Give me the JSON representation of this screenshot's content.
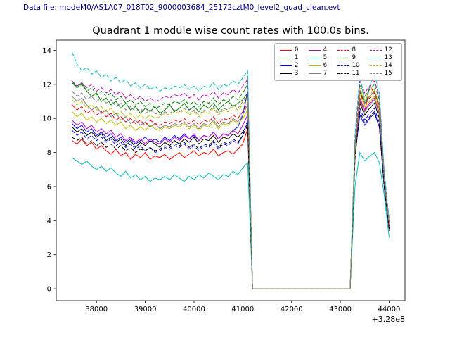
{
  "header": {
    "data_file_label": "Data file: modeM0/AS1A07_018T02_9000003684_25172cztM0_level2_quad_clean.evt",
    "color": "#00008b"
  },
  "chart_data": {
    "type": "line",
    "title": "Quadrant 1 module wise count rates with 100.0s bins.",
    "xlabel": "",
    "ylabel": "",
    "x_offset_label": "+3.28e8",
    "grid": false,
    "legend_position": "upper right",
    "legend_columns": 4,
    "xlim": [
      37175,
      44325
    ],
    "ylim": [
      -0.7,
      14.6
    ],
    "xticks": [
      38000,
      39000,
      40000,
      41000,
      42000,
      43000,
      44000
    ],
    "yticks": [
      0,
      2,
      4,
      6,
      8,
      10,
      12,
      14
    ],
    "x": [
      37500,
      37600,
      37700,
      37800,
      37900,
      38000,
      38100,
      38200,
      38300,
      38400,
      38500,
      38600,
      38700,
      38800,
      38900,
      39000,
      39100,
      39200,
      39300,
      39400,
      39500,
      39600,
      39700,
      39800,
      39900,
      40000,
      40100,
      40200,
      40300,
      40400,
      40500,
      40600,
      40700,
      40800,
      40900,
      41000,
      41100,
      41200,
      41300,
      41400,
      41500,
      41600,
      41700,
      41800,
      41900,
      42000,
      42100,
      42200,
      42300,
      42400,
      42500,
      42600,
      42700,
      42800,
      42900,
      43000,
      43100,
      43200,
      43300,
      43400,
      43500,
      43600,
      43700,
      43800,
      43900,
      44000
    ],
    "series": [
      {
        "name": "0",
        "color": "#ff0000",
        "dash": "solid",
        "values": [
          8.7,
          8.5,
          8.8,
          8.4,
          8.6,
          8.2,
          8.4,
          8.1,
          7.9,
          8.2,
          7.8,
          8.0,
          7.6,
          7.9,
          7.7,
          8.0,
          7.6,
          7.8,
          7.7,
          7.9,
          7.6,
          7.8,
          8.0,
          7.7,
          7.9,
          8.1,
          7.8,
          8.0,
          7.9,
          8.2,
          7.8,
          8.0,
          8.1,
          7.9,
          8.2,
          8.5,
          9.4,
          0,
          0,
          0,
          0,
          0,
          0,
          0,
          0,
          0,
          0,
          0,
          0,
          0,
          0,
          0,
          0,
          0,
          0,
          0,
          0,
          0,
          8.5,
          11.0,
          10.4,
          11.9,
          11.5,
          10.8,
          6.5,
          3.8
        ]
      },
      {
        "name": "1",
        "color": "#008000",
        "dash": "solid",
        "values": [
          12.2,
          11.8,
          12.1,
          11.6,
          11.3,
          11.5,
          11.0,
          11.2,
          10.8,
          11.0,
          10.6,
          10.9,
          10.5,
          10.7,
          10.3,
          10.6,
          10.4,
          10.7,
          10.3,
          10.5,
          10.8,
          10.4,
          10.6,
          10.9,
          10.5,
          10.7,
          10.4,
          10.8,
          10.6,
          10.9,
          10.5,
          10.8,
          11.0,
          10.7,
          10.9,
          11.1,
          11.5,
          0,
          0,
          0,
          0,
          0,
          0,
          0,
          0,
          0,
          0,
          0,
          0,
          0,
          0,
          0,
          0,
          0,
          0,
          0,
          0,
          0,
          8.2,
          11.6,
          10.9,
          11.3,
          11.6,
          10.7,
          6.3,
          3.6
        ]
      },
      {
        "name": "2",
        "color": "#0000ff",
        "dash": "solid",
        "values": [
          9.7,
          9.4,
          9.6,
          9.2,
          9.4,
          9.0,
          9.2,
          8.9,
          9.1,
          8.7,
          8.9,
          8.6,
          8.8,
          8.5,
          8.7,
          8.9,
          8.6,
          8.8,
          8.6,
          8.9,
          8.7,
          9.0,
          8.8,
          9.1,
          8.8,
          9.0,
          8.7,
          9.0,
          8.9,
          9.2,
          8.8,
          9.1,
          9.0,
          9.3,
          9.5,
          10.2,
          11.6,
          0,
          0,
          0,
          0,
          0,
          0,
          0,
          0,
          0,
          0,
          0,
          0,
          0,
          0,
          0,
          0,
          0,
          0,
          0,
          0,
          0,
          7.8,
          10.2,
          9.6,
          10.0,
          10.3,
          9.5,
          6.0,
          3.5
        ]
      },
      {
        "name": "3",
        "color": "#000000",
        "dash": "solid",
        "values": [
          9.5,
          9.2,
          9.4,
          9.0,
          9.2,
          8.9,
          9.1,
          8.7,
          8.9,
          8.6,
          8.8,
          8.4,
          8.7,
          8.3,
          8.6,
          8.4,
          8.7,
          8.5,
          8.3,
          8.6,
          8.4,
          8.7,
          8.5,
          8.8,
          8.6,
          8.9,
          8.5,
          8.8,
          8.7,
          9.0,
          8.6,
          8.9,
          8.8,
          9.1,
          8.9,
          9.2,
          9.7,
          0,
          0,
          0,
          0,
          0,
          0,
          0,
          0,
          0,
          0,
          0,
          0,
          0,
          0,
          0,
          0,
          0,
          0,
          0,
          0,
          0,
          8.0,
          10.9,
          10.2,
          10.6,
          10.9,
          10.0,
          6.4,
          3.7
        ]
      },
      {
        "name": "4",
        "color": "#bf00bf",
        "dash": "solid",
        "values": [
          9.9,
          9.6,
          9.8,
          9.4,
          9.6,
          9.2,
          9.4,
          9.1,
          9.3,
          8.9,
          9.1,
          8.7,
          8.9,
          8.6,
          8.8,
          8.5,
          8.8,
          8.6,
          8.5,
          8.8,
          8.6,
          8.9,
          8.7,
          9.0,
          8.8,
          9.1,
          8.7,
          9.0,
          8.9,
          9.2,
          8.8,
          9.1,
          9.0,
          9.3,
          9.1,
          9.6,
          10.2,
          0,
          0,
          0,
          0,
          0,
          0,
          0,
          0,
          0,
          0,
          0,
          0,
          0,
          0,
          0,
          0,
          0,
          0,
          0,
          0,
          0,
          7.9,
          11.2,
          10.5,
          10.9,
          11.2,
          10.3,
          6.2,
          3.9
        ]
      },
      {
        "name": "5",
        "color": "#00bfbf",
        "dash": "solid",
        "values": [
          7.7,
          7.5,
          7.3,
          7.5,
          7.2,
          7.0,
          7.2,
          6.9,
          7.1,
          6.8,
          6.6,
          6.9,
          6.5,
          6.7,
          6.4,
          6.6,
          6.3,
          6.5,
          6.4,
          6.6,
          6.4,
          6.7,
          6.5,
          6.3,
          6.6,
          6.4,
          6.7,
          6.5,
          6.8,
          6.6,
          6.4,
          6.7,
          6.6,
          6.9,
          6.7,
          7.1,
          7.4,
          0,
          0,
          0,
          0,
          0,
          0,
          0,
          0,
          0,
          0,
          0,
          0,
          0,
          0,
          0,
          0,
          0,
          0,
          0,
          0,
          0,
          6.0,
          8.0,
          7.5,
          7.8,
          8.0,
          7.4,
          5.5,
          3.0
        ]
      },
      {
        "name": "6",
        "color": "#bfbf00",
        "dash": "solid",
        "values": [
          10.4,
          10.1,
          10.3,
          9.9,
          10.1,
          9.8,
          10.0,
          9.7,
          9.9,
          9.6,
          9.8,
          9.4,
          9.6,
          9.3,
          9.5,
          9.3,
          9.6,
          9.4,
          9.3,
          9.5,
          9.4,
          9.6,
          9.5,
          9.7,
          9.4,
          9.6,
          9.3,
          9.6,
          9.5,
          9.8,
          9.4,
          9.7,
          9.6,
          9.9,
          9.7,
          10.0,
          10.5,
          0,
          0,
          0,
          0,
          0,
          0,
          0,
          0,
          0,
          0,
          0,
          0,
          0,
          0,
          0,
          0,
          0,
          0,
          0,
          0,
          0,
          7.7,
          11.4,
          10.7,
          11.0,
          11.3,
          10.5,
          6.1,
          3.6
        ]
      },
      {
        "name": "7",
        "color": "#808080",
        "dash": "solid",
        "values": [
          11.3,
          11.0,
          11.2,
          10.8,
          10.5,
          10.7,
          10.3,
          10.5,
          10.1,
          10.3,
          9.9,
          10.1,
          9.7,
          9.9,
          9.6,
          9.8,
          9.5,
          9.7,
          9.4,
          9.6,
          9.5,
          9.7,
          9.6,
          9.8,
          9.5,
          9.7,
          9.4,
          9.7,
          9.6,
          9.9,
          9.5,
          9.8,
          9.7,
          10.0,
          9.8,
          10.2,
          10.8,
          0,
          0,
          0,
          0,
          0,
          0,
          0,
          0,
          0,
          0,
          0,
          0,
          0,
          0,
          0,
          0,
          0,
          0,
          0,
          0,
          0,
          7.8,
          11.1,
          10.4,
          10.8,
          11.1,
          10.2,
          6.2,
          3.8
        ]
      },
      {
        "name": "8",
        "color": "#ff0000",
        "dash": "dashed",
        "values": [
          10.8,
          10.5,
          10.7,
          10.3,
          10.5,
          10.2,
          10.4,
          10.1,
          10.3,
          9.9,
          10.1,
          9.8,
          10.0,
          9.7,
          9.9,
          9.6,
          9.9,
          9.7,
          9.6,
          9.8,
          9.7,
          9.9,
          9.8,
          10.0,
          9.7,
          9.9,
          9.6,
          9.9,
          9.8,
          10.1,
          9.7,
          10.0,
          9.9,
          10.2,
          10.0,
          10.4,
          10.9,
          0,
          0,
          0,
          0,
          0,
          0,
          0,
          0,
          0,
          0,
          0,
          0,
          0,
          0,
          0,
          0,
          0,
          0,
          0,
          0,
          0,
          7.9,
          11.5,
          10.8,
          11.2,
          11.5,
          10.6,
          6.3,
          3.7
        ]
      },
      {
        "name": "9",
        "color": "#008000",
        "dash": "dashed",
        "values": [
          12.1,
          11.8,
          12.0,
          11.6,
          11.8,
          11.4,
          11.6,
          11.3,
          11.5,
          11.1,
          11.3,
          10.9,
          11.1,
          10.8,
          11.0,
          10.7,
          10.9,
          10.6,
          10.7,
          10.9,
          10.8,
          11.0,
          10.9,
          11.1,
          10.8,
          11.0,
          10.7,
          11.0,
          10.9,
          11.2,
          10.8,
          11.1,
          11.0,
          11.3,
          11.1,
          11.5,
          12.0,
          0,
          0,
          0,
          0,
          0,
          0,
          0,
          0,
          0,
          0,
          0,
          0,
          0,
          0,
          0,
          0,
          0,
          0,
          0,
          0,
          0,
          8.4,
          12.0,
          11.3,
          11.7,
          12.0,
          11.1,
          6.6,
          4.0
        ]
      },
      {
        "name": "10",
        "color": "#0000ff",
        "dash": "dashed",
        "values": [
          9.3,
          9.0,
          9.2,
          8.8,
          9.0,
          8.7,
          8.9,
          8.6,
          8.8,
          8.4,
          8.6,
          8.3,
          8.5,
          8.2,
          8.4,
          8.1,
          8.3,
          8.0,
          8.1,
          8.3,
          8.2,
          8.4,
          8.3,
          8.5,
          8.2,
          8.4,
          8.1,
          8.4,
          8.3,
          8.6,
          8.2,
          8.5,
          8.4,
          8.7,
          8.5,
          9.0,
          9.9,
          0,
          0,
          0,
          0,
          0,
          0,
          0,
          0,
          0,
          0,
          0,
          0,
          0,
          0,
          0,
          0,
          0,
          0,
          0,
          0,
          0,
          7.6,
          10.6,
          9.9,
          10.3,
          10.6,
          9.7,
          6.0,
          3.4
        ]
      },
      {
        "name": "11",
        "color": "#000000",
        "dash": "dashed",
        "values": [
          8.9,
          8.7,
          8.9,
          8.5,
          8.7,
          8.4,
          8.6,
          8.3,
          8.5,
          8.2,
          8.4,
          8.1,
          8.3,
          8.0,
          8.2,
          8.1,
          8.3,
          8.1,
          8.2,
          8.4,
          8.3,
          8.5,
          8.4,
          8.6,
          8.3,
          8.5,
          8.2,
          8.5,
          8.4,
          8.7,
          8.3,
          8.6,
          8.5,
          8.8,
          8.6,
          9.0,
          9.6,
          0,
          0,
          0,
          0,
          0,
          0,
          0,
          0,
          0,
          0,
          0,
          0,
          0,
          0,
          0,
          0,
          0,
          0,
          0,
          0,
          0,
          7.7,
          10.4,
          9.7,
          10.1,
          10.4,
          9.5,
          5.9,
          3.5
        ]
      },
      {
        "name": "12",
        "color": "#bf00bf",
        "dash": "dashed",
        "values": [
          12.2,
          11.9,
          12.1,
          11.8,
          12.0,
          11.6,
          11.8,
          11.5,
          11.7,
          11.4,
          11.6,
          11.2,
          11.4,
          11.1,
          11.3,
          11.0,
          11.2,
          11.0,
          11.1,
          11.3,
          11.2,
          11.4,
          11.3,
          11.5,
          11.2,
          11.4,
          11.1,
          11.4,
          11.3,
          11.6,
          11.2,
          11.5,
          11.4,
          11.7,
          11.5,
          11.9,
          12.3,
          0,
          0,
          0,
          0,
          0,
          0,
          0,
          0,
          0,
          0,
          0,
          0,
          0,
          0,
          0,
          0,
          0,
          0,
          0,
          0,
          0,
          8.6,
          12.2,
          11.5,
          11.9,
          12.2,
          11.3,
          6.7,
          3.9
        ]
      },
      {
        "name": "13",
        "color": "#00bfbf",
        "dash": "dashed",
        "values": [
          13.9,
          13.2,
          12.8,
          13.0,
          12.6,
          12.8,
          12.4,
          12.6,
          12.2,
          12.4,
          12.1,
          12.3,
          11.9,
          12.1,
          11.8,
          12.0,
          11.7,
          11.9,
          11.6,
          11.8,
          11.7,
          11.9,
          11.8,
          12.0,
          11.7,
          11.9,
          11.6,
          11.9,
          11.8,
          12.1,
          11.7,
          12.0,
          11.9,
          12.2,
          12.0,
          12.4,
          12.8,
          0,
          0,
          0,
          0,
          0,
          0,
          0,
          0,
          0,
          0,
          0,
          0,
          0,
          0,
          0,
          0,
          0,
          0,
          0,
          0,
          0,
          9.0,
          12.6,
          10.9,
          11.9,
          12.6,
          11.5,
          6.9,
          4.1
        ]
      },
      {
        "name": "14",
        "color": "#bfbf00",
        "dash": "dashed",
        "values": [
          11.1,
          10.8,
          11.0,
          10.6,
          10.8,
          10.5,
          10.7,
          10.4,
          10.6,
          10.2,
          10.4,
          10.1,
          10.3,
          10.0,
          10.2,
          10.0,
          10.2,
          10.0,
          10.1,
          10.3,
          10.2,
          10.4,
          10.3,
          10.5,
          10.2,
          10.4,
          10.1,
          10.4,
          10.3,
          10.6,
          10.2,
          10.5,
          10.4,
          10.7,
          10.5,
          10.8,
          11.2,
          0,
          0,
          0,
          0,
          0,
          0,
          0,
          0,
          0,
          0,
          0,
          0,
          0,
          0,
          0,
          0,
          0,
          0,
          0,
          0,
          0,
          8.1,
          11.8,
          11.1,
          11.4,
          11.7,
          10.8,
          6.4,
          3.8
        ]
      },
      {
        "name": "15",
        "color": "#808080",
        "dash": "dashed",
        "values": [
          11.6,
          11.3,
          11.5,
          11.1,
          11.3,
          11.0,
          11.2,
          10.9,
          11.1,
          10.7,
          10.9,
          10.5,
          10.7,
          10.4,
          10.6,
          10.3,
          10.5,
          10.3,
          10.2,
          10.4,
          10.3,
          10.5,
          10.4,
          10.6,
          10.3,
          10.5,
          10.2,
          10.5,
          10.4,
          10.7,
          10.3,
          10.6,
          10.5,
          10.8,
          10.6,
          11.0,
          11.3,
          0,
          0,
          0,
          0,
          0,
          0,
          0,
          0,
          0,
          0,
          0,
          0,
          0,
          0,
          0,
          0,
          0,
          0,
          0,
          0,
          0,
          8.3,
          11.7,
          11.0,
          11.3,
          11.6,
          10.7,
          6.5,
          3.9
        ]
      }
    ]
  }
}
